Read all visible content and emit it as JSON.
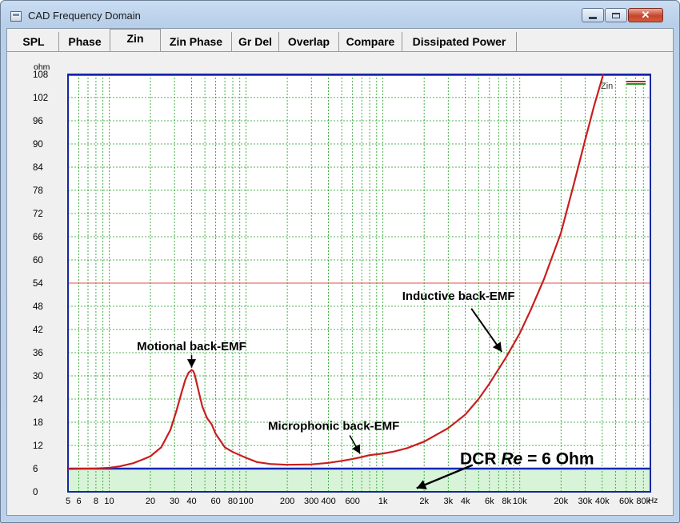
{
  "window": {
    "title": "CAD Frequency Domain",
    "close_glyph": "✕"
  },
  "tabs": [
    {
      "label": "SPL"
    },
    {
      "label": "Phase"
    },
    {
      "label": "Zin"
    },
    {
      "label": "Zin Phase"
    },
    {
      "label": "Gr Del"
    },
    {
      "label": "Overlap"
    },
    {
      "label": "Compare"
    },
    {
      "label": "Dissipated Power"
    }
  ],
  "active_tab": "Zin",
  "colors": {
    "curve": "#c81e1e",
    "grid": "#1a9a1a",
    "frame": "#1428a0",
    "ref_line": "#e05050",
    "dcr_fill": "#d8f4d8",
    "dcr_line": "#1428b4",
    "plot_bg": "#ffffff"
  },
  "chart_data": {
    "type": "line",
    "ylabel": "ohm",
    "x_scale": "log",
    "xlim": [
      5,
      90000
    ],
    "ylim": [
      0,
      108
    ],
    "yticks": [
      0,
      6,
      12,
      18,
      24,
      30,
      36,
      42,
      48,
      54,
      60,
      66,
      72,
      78,
      84,
      90,
      96,
      102,
      108
    ],
    "xtick_labels": [
      {
        "x": 5,
        "label": "5"
      },
      {
        "x": 6,
        "label": "6"
      },
      {
        "x": 8,
        "label": "8"
      },
      {
        "x": 10,
        "label": "10"
      },
      {
        "x": 20,
        "label": "20"
      },
      {
        "x": 30,
        "label": "30"
      },
      {
        "x": 40,
        "label": "40"
      },
      {
        "x": 60,
        "label": "60"
      },
      {
        "x": 80,
        "label": "80"
      },
      {
        "x": 100,
        "label": "100"
      },
      {
        "x": 200,
        "label": "200"
      },
      {
        "x": 300,
        "label": "300"
      },
      {
        "x": 400,
        "label": "400"
      },
      {
        "x": 600,
        "label": "600"
      },
      {
        "x": 1000,
        "label": "1k"
      },
      {
        "x": 2000,
        "label": "2k"
      },
      {
        "x": 3000,
        "label": "3k"
      },
      {
        "x": 4000,
        "label": "4k"
      },
      {
        "x": 6000,
        "label": "6k"
      },
      {
        "x": 8000,
        "label": "8k"
      },
      {
        "x": 10000,
        "label": "10k"
      },
      {
        "x": 20000,
        "label": "20k"
      },
      {
        "x": 30000,
        "label": "30k"
      },
      {
        "x": 40000,
        "label": "40k"
      },
      {
        "x": 60000,
        "label": "60k"
      },
      {
        "x": 80000,
        "label": "80k"
      }
    ],
    "x_unit": "Hz",
    "grid": true,
    "legend": {
      "entry": "Zin",
      "position": "top-right"
    },
    "reference_line_y": 54,
    "dcr_level": 6,
    "series": [
      {
        "values_x": [
          5,
          6,
          8,
          10,
          12,
          15,
          18,
          20,
          24,
          28,
          31,
          34,
          36,
          38,
          40,
          41,
          42,
          43,
          45,
          48,
          52,
          56,
          60,
          70,
          80,
          100,
          120,
          150,
          200,
          300,
          400,
          500,
          600,
          700,
          800,
          900,
          1000,
          1200,
          1500,
          2000,
          3000,
          4000,
          5000,
          6000,
          8000,
          10000,
          12000,
          15000,
          20000,
          25000,
          30000,
          35000,
          40000,
          45000,
          50000
        ],
        "values_y": [
          5.9,
          5.95,
          6.05,
          6.2,
          6.6,
          7.4,
          8.5,
          9.2,
          11.5,
          16,
          21,
          26,
          29,
          30.8,
          31.5,
          31.3,
          30.5,
          29,
          26,
          22,
          19,
          17.5,
          15,
          11.5,
          10.3,
          8.8,
          7.7,
          7.2,
          7,
          7.1,
          7.5,
          8,
          8.5,
          9,
          9.5,
          9.7,
          9.9,
          10.4,
          11.3,
          13,
          16.5,
          20,
          24,
          28,
          35,
          41,
          47,
          55,
          67,
          80,
          91,
          100,
          107,
          114,
          121
        ]
      }
    ],
    "annotations": [
      {
        "text": "Motional back-EMF",
        "x": 40,
        "y": 31.5
      },
      {
        "text": "Microphonic back-EMF",
        "x": 700,
        "y": 9
      },
      {
        "text": "Inductive back-EMF",
        "x": 8000,
        "y": 35
      },
      {
        "text": "DCR ",
        "text_italic": "Re",
        "text_tail": " = 6 Ohm",
        "x": 1500,
        "y": 3
      }
    ]
  }
}
